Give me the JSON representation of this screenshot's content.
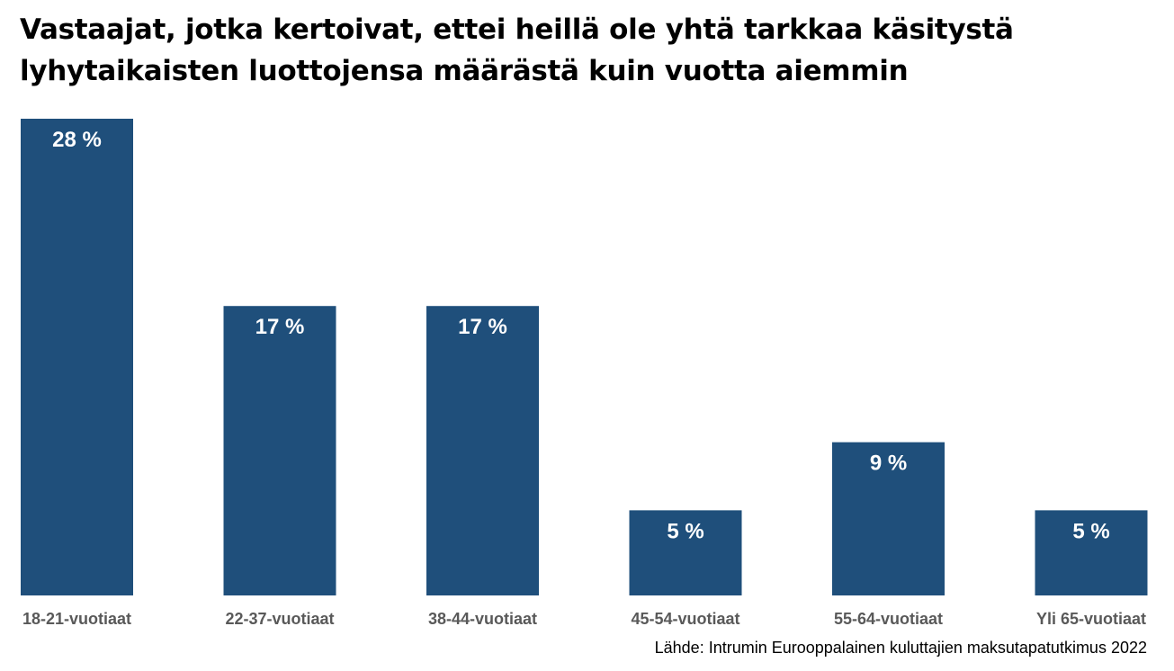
{
  "header": {
    "title_line1": "Vastaajat, jotka kertoivat, ettei heillä ole yhtä tarkkaa käsitystä",
    "title_line2": "lyhytaikaisten luottojensa määrästä kuin vuotta aiemmin"
  },
  "footer": {
    "source": "Lähde: Intrumin Eurooppalainen kuluttajien maksutapatutkimus 2022"
  },
  "colors": {
    "bar": "#1f4f7b",
    "bar_label": "#ffffff",
    "category_label": "#595959",
    "text": "#000000"
  },
  "chart_data": {
    "type": "bar",
    "title": "Vastaajat, jotka kertoivat, ettei heillä ole yhtä tarkkaa käsitystä lyhytaikaisten luottojensa määrästä kuin vuotta aiemmin",
    "categories": [
      "18-21-vuotiaat",
      "22-37-vuotiaat",
      "38-44-vuotiaat",
      "45-54-vuotiaat",
      "55-64-vuotiaat",
      "Yli 65-vuotiaat"
    ],
    "values": [
      28,
      17,
      17,
      5,
      9,
      5
    ],
    "value_labels": [
      "28 %",
      "17 %",
      "17 %",
      "5 %",
      "9 %",
      "5 %"
    ],
    "unit": "%",
    "ylim": [
      0,
      28
    ],
    "grid": false,
    "legend": "none"
  }
}
